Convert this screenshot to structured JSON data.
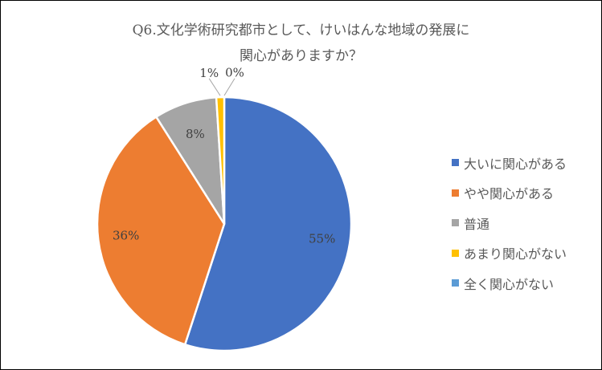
{
  "chart_data": {
    "type": "pie",
    "title_lines": [
      "Q6.文化学術研究都市として、けいはんな地域の発展に",
      "関心がありますか？"
    ],
    "categories": [
      "大いに関心がある",
      "やや関心がある",
      "普通",
      "あまり関心がない",
      "全く関心がない"
    ],
    "values": [
      55,
      36,
      8,
      1,
      0
    ],
    "labels": [
      "55%",
      "36%",
      "8%",
      "1%",
      "0%"
    ],
    "colors": [
      "#4472C4",
      "#ED7D31",
      "#A5A5A5",
      "#FFC000",
      "#5B9BD5"
    ],
    "legend_position": "right"
  }
}
